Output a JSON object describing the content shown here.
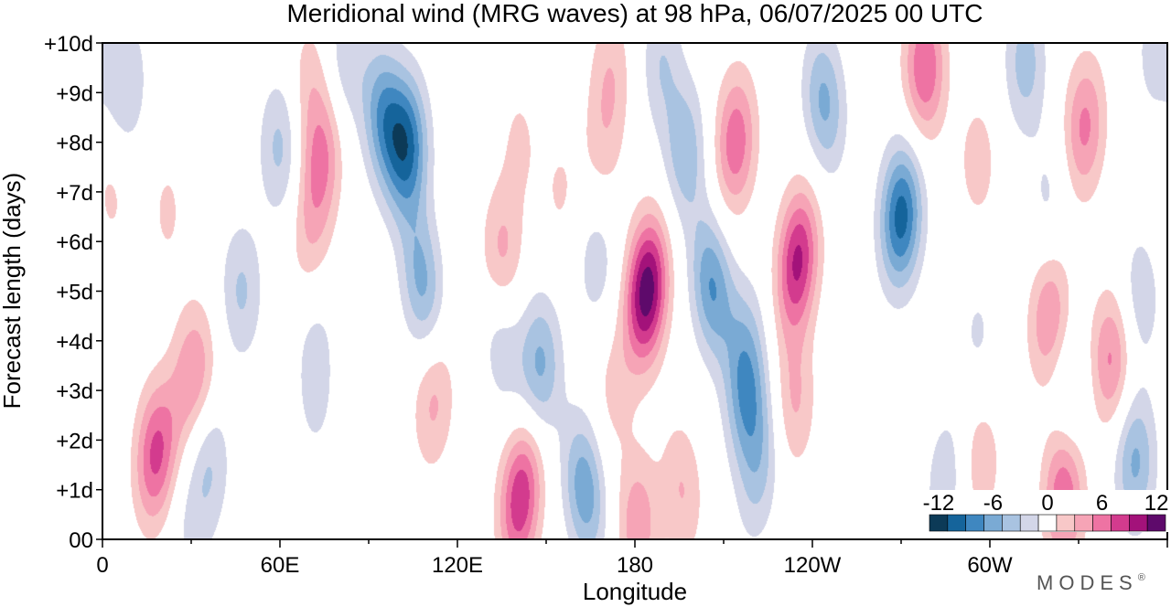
{
  "chart_data": {
    "type": "heatmap",
    "title": "Meridional wind (MRG waves) at  98 hPa,  06/07/2025  00 UTC",
    "xlabel": "Longitude",
    "ylabel": "Forecast length (days)",
    "x_ticks": [
      "0",
      "60E",
      "120E",
      "180",
      "120W",
      "60W"
    ],
    "x_tick_values": [
      0,
      60,
      120,
      180,
      240,
      300
    ],
    "x_range": [
      0,
      360
    ],
    "y_ticks": [
      "00",
      "+1d",
      "+2d",
      "+3d",
      "+4d",
      "+5d",
      "+6d",
      "+7d",
      "+8d",
      "+9d",
      "+10d"
    ],
    "y_tick_values": [
      0,
      1,
      2,
      3,
      4,
      5,
      6,
      7,
      8,
      9,
      10
    ],
    "y_range": [
      0,
      10
    ],
    "colorbar": {
      "tick_labels": [
        "-12",
        "-6",
        "0",
        "6",
        "12"
      ],
      "tick_values": [
        -12,
        -6,
        0,
        6,
        12
      ],
      "levels": [
        -14,
        -12,
        -10,
        -8,
        -6,
        -4,
        -2,
        2,
        4,
        6,
        8,
        10,
        12,
        14
      ],
      "colors": [
        "#0c3a57",
        "#15649b",
        "#3f87c0",
        "#7aaad4",
        "#a9c3e1",
        "#d3d6e8",
        "#ffffff",
        "#f8c8c8",
        "#f6a4b6",
        "#ee73a3",
        "#d33b8e",
        "#a3127a",
        "#5e0a6b"
      ]
    },
    "features": [
      {
        "lon": 18,
        "day": 1.7,
        "value": 8.5,
        "slope": 0.03
      },
      {
        "lon": 32,
        "day": 3.4,
        "value": 4.3,
        "slope": 0
      },
      {
        "lon": 28,
        "day": 2.9,
        "value": 2.5,
        "slope": 0.04
      },
      {
        "lon": 3,
        "day": 7.0,
        "value": 2.5,
        "slope": 0
      },
      {
        "lon": 22,
        "day": 6.6,
        "value": 2.3,
        "slope": 0
      },
      {
        "lon": 36,
        "day": 1.6,
        "value": -4.2,
        "slope": 0
      },
      {
        "lon": 8,
        "day": 9.1,
        "value": -4.0,
        "slope": 0.02
      },
      {
        "lon": 60,
        "day": 7.9,
        "value": -4.6,
        "slope": 0
      },
      {
        "lon": 47,
        "day": 5.0,
        "value": -4.3,
        "slope": 0
      },
      {
        "lon": 30,
        "day": 0.15,
        "value": -2.3,
        "slope": 0
      },
      {
        "lon": 74,
        "day": 7.6,
        "value": 6.3,
        "slope": 0.03
      },
      {
        "lon": 70,
        "day": 9.2,
        "value": 3.0,
        "slope": 0
      },
      {
        "lon": 70,
        "day": 5.9,
        "value": 3.1,
        "slope": 0
      },
      {
        "lon": 72,
        "day": 4.3,
        "value": -2.2,
        "slope": 0
      },
      {
        "lon": 95,
        "day": 8.5,
        "value": -7.5,
        "slope": -0.025
      },
      {
        "lon": 82,
        "day": 9.6,
        "value": -3.5,
        "slope": 0
      },
      {
        "lon": 103,
        "day": 7.9,
        "value": -10.0,
        "slope": 0
      },
      {
        "lon": 108,
        "day": 5.2,
        "value": -6.5,
        "slope": -0.04
      },
      {
        "lon": 135,
        "day": 4.0,
        "value": -3.6,
        "slope": -0.03
      },
      {
        "lon": 148,
        "day": 3.5,
        "value": -6.5,
        "slope": 0
      },
      {
        "lon": 112,
        "day": 2.8,
        "value": 4.5,
        "slope": 0.025
      },
      {
        "lon": 135,
        "day": 5.7,
        "value": 4.8,
        "slope": 0
      },
      {
        "lon": 72,
        "day": 2.8,
        "value": -2.2,
        "slope": 0
      },
      {
        "lon": 142,
        "day": 1.0,
        "value": 7.0,
        "slope": 0.05
      },
      {
        "lon": 140,
        "day": 0.5,
        "value": 3.2,
        "slope": 0
      },
      {
        "lon": 163,
        "day": 1.0,
        "value": -7.5,
        "slope": -0.04
      },
      {
        "lon": 167,
        "day": 5.6,
        "value": -3.2,
        "slope": 0
      },
      {
        "lon": 172,
        "day": 9.4,
        "value": 3.4,
        "slope": 0
      },
      {
        "lon": 169,
        "day": 7.9,
        "value": 2.6,
        "slope": 0
      },
      {
        "lon": 141,
        "day": 8.0,
        "value": 2.3,
        "slope": 0
      },
      {
        "lon": 155,
        "day": 7.0,
        "value": 2.2,
        "slope": 0
      },
      {
        "lon": 184,
        "day": 5.0,
        "value": 13.5,
        "slope": 0.035
      },
      {
        "lon": 181,
        "day": 0.3,
        "value": 5.5,
        "slope": 0
      },
      {
        "lon": 196,
        "day": 1.0,
        "value": 4.0,
        "slope": -0.03
      },
      {
        "lon": 173,
        "day": 3.0,
        "value": 2.6,
        "slope": 0
      },
      {
        "lon": 206,
        "day": 5.1,
        "value": -8.0,
        "slope": -0.035
      },
      {
        "lon": 217,
        "day": 3.9,
        "value": -4.0,
        "slope": 0
      },
      {
        "lon": 218,
        "day": 2.7,
        "value": -6.5,
        "slope": 0
      },
      {
        "lon": 222,
        "day": 1.3,
        "value": -3.8,
        "slope": 0.05
      },
      {
        "lon": 197,
        "day": 7.8,
        "value": -5.5,
        "slope": 0
      },
      {
        "lon": 189,
        "day": 9.6,
        "value": -3.8,
        "slope": 0
      },
      {
        "lon": 214,
        "day": 8.0,
        "value": 7.5,
        "slope": 0.02
      },
      {
        "lon": 235,
        "day": 5.6,
        "value": 10.5,
        "slope": 0.04
      },
      {
        "lon": 234,
        "day": 2.8,
        "value": 4.2,
        "slope": 0
      },
      {
        "lon": 244,
        "day": 8.8,
        "value": -6.5,
        "slope": -0.03
      },
      {
        "lon": 270,
        "day": 6.5,
        "value": -11.0,
        "slope": 0.02
      },
      {
        "lon": 278,
        "day": 9.5,
        "value": 8.0,
        "slope": 0
      },
      {
        "lon": 296,
        "day": 7.6,
        "value": 3.0,
        "slope": 0
      },
      {
        "lon": 312,
        "day": 9.6,
        "value": -5.0,
        "slope": 0
      },
      {
        "lon": 332,
        "day": 8.3,
        "value": 6.5,
        "slope": 0.02
      },
      {
        "lon": 320,
        "day": 4.5,
        "value": 6.0,
        "slope": 0.03
      },
      {
        "lon": 341,
        "day": 3.6,
        "value": 6.5,
        "slope": 0
      },
      {
        "lon": 285,
        "day": 1.2,
        "value": -3.5,
        "slope": 0.04
      },
      {
        "lon": 297,
        "day": 1.6,
        "value": 3.5,
        "slope": 0
      },
      {
        "lon": 325,
        "day": 0.9,
        "value": 8.0,
        "slope": 0
      },
      {
        "lon": 349,
        "day": 1.6,
        "value": -6.5,
        "slope": 0
      },
      {
        "lon": 327,
        "day": 2.8,
        "value": -2.5,
        "slope": 0
      },
      {
        "lon": 351,
        "day": 4.9,
        "value": -3.5,
        "slope": 0
      },
      {
        "lon": 320,
        "day": 6.8,
        "value": -2.5,
        "slope": 0
      },
      {
        "lon": 356,
        "day": 9.8,
        "value": -3.0,
        "slope": 0
      },
      {
        "lon": 296,
        "day": 4.1,
        "value": -2.3,
        "slope": 0
      }
    ]
  },
  "logo_text": "MODES",
  "logo_mark": "®"
}
